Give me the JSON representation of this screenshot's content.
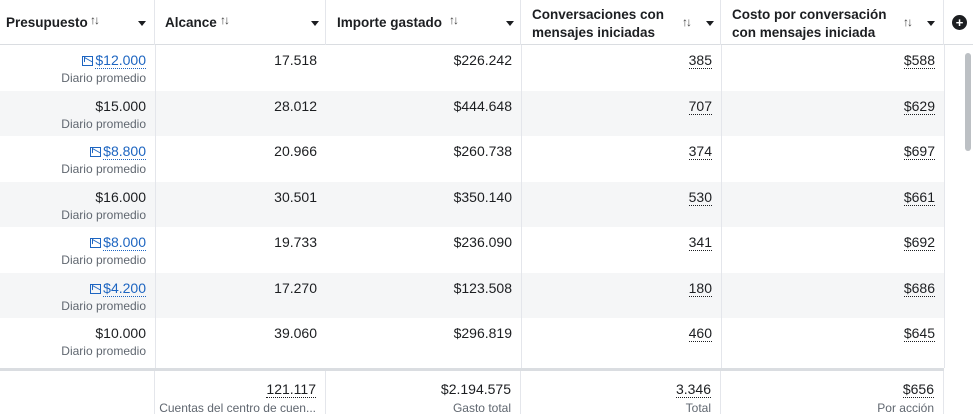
{
  "columns": [
    {
      "label": "Presupuesto",
      "sort": "↑↓"
    },
    {
      "label": "Alcance",
      "sort": "↑↓"
    },
    {
      "label": "Importe gastado",
      "sort": "↑↓"
    },
    {
      "label_line1": "Conversaciones con",
      "label_line2": "mensajes iniciadas",
      "sort": "↑↓"
    },
    {
      "label_line1": "Costo por conversación",
      "label_line2": "con mensajes iniciada",
      "sort": "↑↓"
    }
  ],
  "add_column_icon": "plus-circle-icon",
  "rows": [
    {
      "budget": "$12.000",
      "budget_link": true,
      "budget_sub": "Diario promedio",
      "reach": "17.518",
      "spent": "$226.242",
      "convs": "385",
      "cost": "$588"
    },
    {
      "budget": "$15.000",
      "budget_link": false,
      "budget_sub": "Diario promedio",
      "reach": "28.012",
      "spent": "$444.648",
      "convs": "707",
      "cost": "$629"
    },
    {
      "budget": "$8.800",
      "budget_link": true,
      "budget_sub": "Diario promedio",
      "reach": "20.966",
      "spent": "$260.738",
      "convs": "374",
      "cost": "$697"
    },
    {
      "budget": "$16.000",
      "budget_link": false,
      "budget_sub": "Diario promedio",
      "reach": "30.501",
      "spent": "$350.140",
      "convs": "530",
      "cost": "$661"
    },
    {
      "budget": "$8.000",
      "budget_link": true,
      "budget_sub": "Diario promedio",
      "reach": "19.733",
      "spent": "$236.090",
      "convs": "341",
      "cost": "$692"
    },
    {
      "budget": "$4.200",
      "budget_link": true,
      "budget_sub": "Diario promedio",
      "reach": "17.270",
      "spent": "$123.508",
      "convs": "180",
      "cost": "$686"
    },
    {
      "budget": "$10.000",
      "budget_link": false,
      "budget_sub": "Diario promedio",
      "reach": "39.060",
      "spent": "$296.819",
      "convs": "460",
      "cost": "$645"
    }
  ],
  "totals": {
    "reach": "121.117",
    "reach_sub": "Cuentas del centro de cuen...",
    "spent": "$2.194.575",
    "spent_sub": "Gasto total",
    "convs": "3.346",
    "convs_sub": "Total",
    "cost": "$656",
    "cost_sub": "Por acción"
  },
  "colors": {
    "link": "#1d65c1",
    "alt_row": "#f5f6f7",
    "border": "#e4e6eb"
  }
}
